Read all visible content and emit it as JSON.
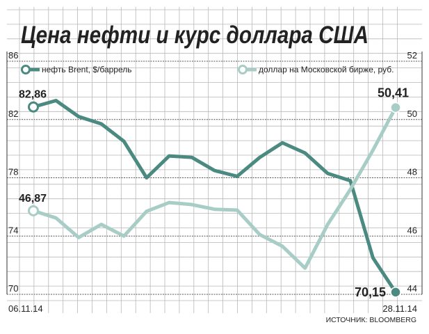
{
  "chart_data": {
    "type": "line",
    "title": "Цена нефти и курс доллара США",
    "source": "ИСТОЧНИК: BLOOMBERG",
    "x_start_label": "06.11.14",
    "x_end_label": "28.11.14",
    "points_count": 17,
    "left_axis": {
      "ticks": [
        "86",
        "82",
        "78",
        "74",
        "70"
      ],
      "ylim": [
        70,
        86
      ]
    },
    "right_axis": {
      "ticks": [
        "52",
        "50",
        "48",
        "46",
        "44"
      ],
      "ylim": [
        44,
        52
      ]
    },
    "grid": true,
    "legend_position": "top",
    "series": [
      {
        "name": "нефть Brent, $/баррель",
        "axis": "left",
        "color": "#4a8a80",
        "values": [
          82.86,
          83.3,
          82.2,
          81.7,
          80.5,
          78.0,
          79.5,
          79.4,
          78.5,
          78.1,
          79.4,
          80.4,
          79.7,
          78.3,
          77.8,
          72.5,
          70.15
        ],
        "start_label": "82,86",
        "end_label": "70,15"
      },
      {
        "name": "доллар на Московской бирже, руб.",
        "axis": "right",
        "color": "#a8cdc6",
        "values": [
          46.87,
          46.62,
          45.95,
          46.4,
          46.0,
          46.85,
          47.15,
          47.08,
          46.92,
          46.89,
          46.05,
          45.65,
          44.9,
          46.4,
          47.6,
          48.95,
          50.41
        ],
        "start_label": "46,87",
        "end_label": "50,41"
      }
    ]
  }
}
